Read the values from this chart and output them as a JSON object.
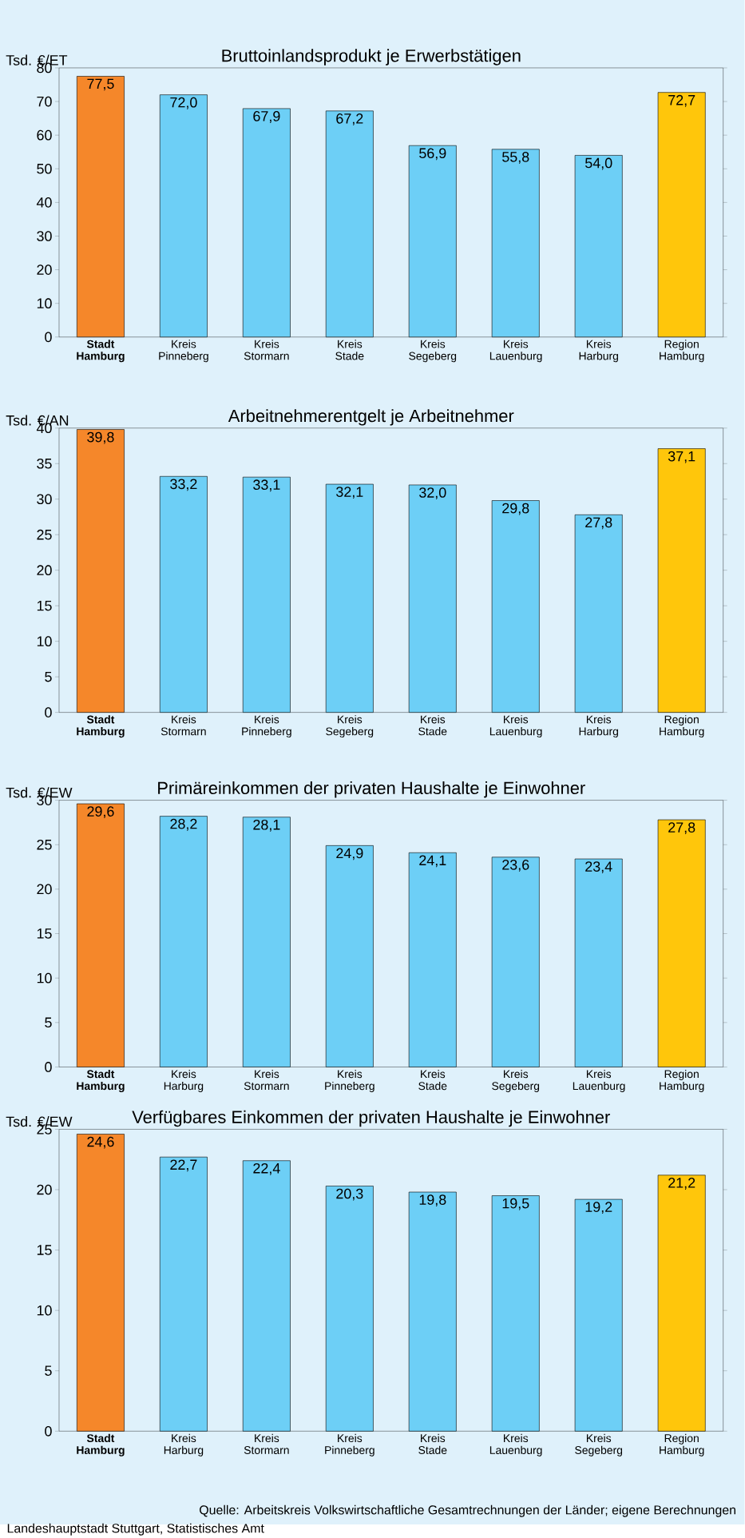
{
  "chart_data": [
    {
      "type": "bar",
      "title": "Bruttoinlandsprodukt je Erwerbstätigen",
      "ylabel": "Tsd. €/ET",
      "categories": [
        "Stadt Hamburg",
        "Kreis Pinneberg",
        "Kreis Stormarn",
        "Kreis Stade",
        "Kreis Segeberg",
        "Kreis Lauenburg",
        "Kreis Harburg",
        "Region Hamburg"
      ],
      "values": [
        77.5,
        72.0,
        67.9,
        67.2,
        56.9,
        55.8,
        54.0,
        72.7
      ],
      "value_labels": [
        "77,5",
        "72,0",
        "67,9",
        "67,2",
        "56,9",
        "55,8",
        "54,0",
        "72,7"
      ],
      "colors": [
        "#f5872a",
        "#6dcff6",
        "#6dcff6",
        "#6dcff6",
        "#6dcff6",
        "#6dcff6",
        "#6dcff6",
        "#ffc60b"
      ],
      "ylim": [
        0,
        80
      ],
      "yticks": [
        0,
        10,
        20,
        30,
        40,
        50,
        60,
        70,
        80
      ],
      "grid": false
    },
    {
      "type": "bar",
      "title": "Arbeitnehmerentgelt je Arbeitnehmer",
      "ylabel": "Tsd. €/AN",
      "categories": [
        "Stadt Hamburg",
        "Kreis Stormarn",
        "Kreis Pinneberg",
        "Kreis Segeberg",
        "Kreis Stade",
        "Kreis Lauenburg",
        "Kreis Harburg",
        "Region Hamburg"
      ],
      "values": [
        39.8,
        33.2,
        33.1,
        32.1,
        32.0,
        29.8,
        27.8,
        37.1
      ],
      "value_labels": [
        "39,8",
        "33,2",
        "33,1",
        "32,1",
        "32,0",
        "29,8",
        "27,8",
        "37,1"
      ],
      "colors": [
        "#f5872a",
        "#6dcff6",
        "#6dcff6",
        "#6dcff6",
        "#6dcff6",
        "#6dcff6",
        "#6dcff6",
        "#ffc60b"
      ],
      "ylim": [
        0,
        40
      ],
      "yticks": [
        0,
        5,
        10,
        15,
        20,
        25,
        30,
        35,
        40
      ],
      "grid": false
    },
    {
      "type": "bar",
      "title": "Primäreinkommen der privaten Haushalte je Einwohner",
      "ylabel": "Tsd. €/EW",
      "categories": [
        "Stadt Hamburg",
        "Kreis Harburg",
        "Kreis Stormarn",
        "Kreis Pinneberg",
        "Kreis Stade",
        "Kreis Segeberg",
        "Kreis Lauenburg",
        "Region Hamburg"
      ],
      "values": [
        29.6,
        28.2,
        28.1,
        24.9,
        24.1,
        23.6,
        23.4,
        27.8
      ],
      "value_labels": [
        "29,6",
        "28,2",
        "28,1",
        "24,9",
        "24,1",
        "23,6",
        "23,4",
        "27,8"
      ],
      "colors": [
        "#f5872a",
        "#6dcff6",
        "#6dcff6",
        "#6dcff6",
        "#6dcff6",
        "#6dcff6",
        "#6dcff6",
        "#ffc60b"
      ],
      "ylim": [
        0,
        30
      ],
      "yticks": [
        0,
        5,
        10,
        15,
        20,
        25,
        30
      ],
      "grid": false
    },
    {
      "type": "bar",
      "title": "Verfügbares Einkommen der privaten Haushalte je Einwohner",
      "ylabel": "Tsd. €/EW",
      "categories": [
        "Stadt Hamburg",
        "Kreis Harburg",
        "Kreis Stormarn",
        "Kreis Pinneberg",
        "Kreis Stade",
        "Kreis Lauenburg",
        "Kreis Segeberg",
        "Region Hamburg"
      ],
      "values": [
        24.6,
        22.7,
        22.4,
        20.3,
        19.8,
        19.5,
        19.2,
        21.2
      ],
      "value_labels": [
        "24,6",
        "22,7",
        "22,4",
        "20,3",
        "19,8",
        "19,5",
        "19,2",
        "21,2"
      ],
      "colors": [
        "#f5872a",
        "#6dcff6",
        "#6dcff6",
        "#6dcff6",
        "#6dcff6",
        "#6dcff6",
        "#6dcff6",
        "#ffc60b"
      ],
      "ylim": [
        0,
        25
      ],
      "yticks": [
        0,
        5,
        10,
        15,
        20,
        25
      ],
      "grid": false,
      "annotations": [
        "Quelle: Arbeitskreis Volkswirtschaftliche Gesamtrechnungen der Länder; eigene Berechnungen",
        "Landeshauptstadt Stuttgart, Statistisches Amt"
      ]
    }
  ]
}
